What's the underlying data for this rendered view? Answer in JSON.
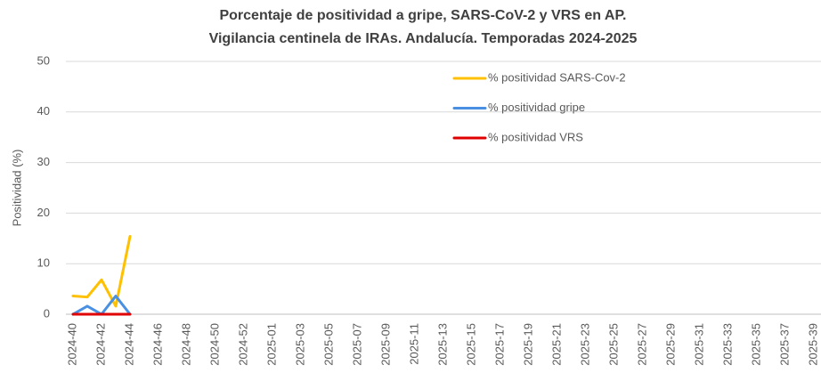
{
  "chart_data": {
    "type": "line",
    "title": [
      "Porcentaje de positividad a gripe, SARS-CoV-2 y VRS en AP.",
      "Vigilancia centinela de IRAs. Andalucía. Temporadas 2024-2025"
    ],
    "y_label": "Positividad (%)",
    "categories": [
      "2024-40",
      null,
      "2024-42",
      null,
      "2024-44",
      null,
      "2024-46",
      null,
      "2024-48",
      null,
      "2024-50",
      null,
      "2024-52",
      null,
      "2025-01",
      null,
      "2025-03",
      null,
      "2025-05",
      null,
      "2025-07",
      null,
      "2025-09",
      null,
      "2025-11",
      null,
      "2025-13",
      null,
      "2025-15",
      null,
      "2025-17",
      null,
      "2025-19",
      null,
      "2025-21",
      null,
      "2025-23",
      null,
      "2025-25",
      null,
      "2025-27",
      null,
      "2025-29",
      null,
      "2025-31",
      null,
      "2025-33",
      null,
      "2025-35",
      null,
      "2025-37",
      null,
      "2025-39"
    ],
    "series": [
      {
        "name": "% positividad SARS-Cov-2",
        "color": "#ffc000",
        "values": [
          3.6,
          3.4,
          6.8,
          1.6,
          15.4,
          null,
          null,
          null,
          null,
          null,
          null,
          null,
          null,
          null,
          null,
          null,
          null,
          null,
          null,
          null,
          null,
          null,
          null,
          null,
          null,
          null,
          null,
          null,
          null,
          null,
          null,
          null,
          null,
          null,
          null,
          null,
          null,
          null,
          null,
          null,
          null,
          null,
          null,
          null,
          null,
          null,
          null,
          null,
          null,
          null,
          null,
          null,
          null
        ]
      },
      {
        "name": "% positividad gripe",
        "color": "#4a90e2",
        "values": [
          0,
          1.6,
          0,
          3.6,
          0,
          null,
          null,
          null,
          null,
          null,
          null,
          null,
          null,
          null,
          null,
          null,
          null,
          null,
          null,
          null,
          null,
          null,
          null,
          null,
          null,
          null,
          null,
          null,
          null,
          null,
          null,
          null,
          null,
          null,
          null,
          null,
          null,
          null,
          null,
          null,
          null,
          null,
          null,
          null,
          null,
          null,
          null,
          null,
          null,
          null,
          null,
          null,
          null
        ]
      },
      {
        "name": "% positividad VRS",
        "color": "#e00000",
        "values": [
          0,
          0,
          0,
          0,
          0,
          null,
          null,
          null,
          null,
          null,
          null,
          null,
          null,
          null,
          null,
          null,
          null,
          null,
          null,
          null,
          null,
          null,
          null,
          null,
          null,
          null,
          null,
          null,
          null,
          null,
          null,
          null,
          null,
          null,
          null,
          null,
          null,
          null,
          null,
          null,
          null,
          null,
          null,
          null,
          null,
          null,
          null,
          null,
          null,
          null,
          null,
          null,
          null
        ]
      }
    ],
    "ylim": [
      0,
      50
    ],
    "yticks": [
      0,
      10,
      20,
      30,
      40,
      50
    ],
    "grid": true
  }
}
